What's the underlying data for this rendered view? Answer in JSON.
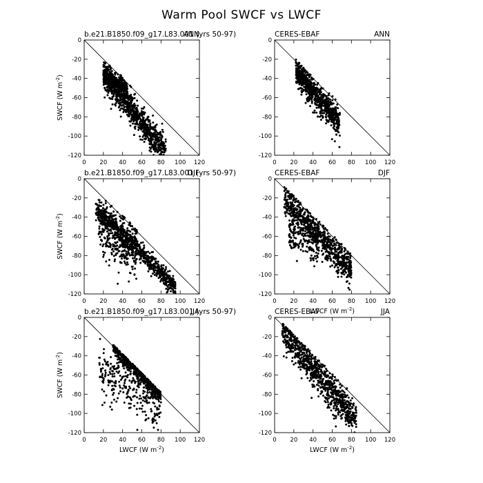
{
  "figure": {
    "title": "Warm Pool SWCF vs LWCF"
  },
  "chart_data": [
    {
      "type": "scatter",
      "left_title": "b.e21.B1850.f09_g17.L83.001 (yrs 50-97)",
      "right_title": "ANN",
      "xlabel": "",
      "ylabel": "SWCF (W m^-2)",
      "xlim": [
        0,
        120
      ],
      "ylim": [
        -120,
        0
      ],
      "xticks": [
        0,
        20,
        40,
        60,
        80,
        100,
        120
      ],
      "yticks": [
        0,
        -20,
        -40,
        -60,
        -80,
        -100,
        -120
      ],
      "reference_line": "1:1 (SWCF = -LWCF)",
      "clusters": [
        {
          "x_range": [
            20,
            85
          ],
          "slope": -1.25,
          "intercept": -10,
          "spread": 8,
          "n": 900
        },
        {
          "x_range": [
            20,
            45
          ],
          "slope": -0.55,
          "intercept": -25,
          "spread": 4,
          "n": 250
        }
      ]
    },
    {
      "type": "scatter",
      "left_title": "CERES-EBAF",
      "right_title": "ANN",
      "xlabel": "",
      "ylabel": "",
      "xlim": [
        0,
        120
      ],
      "ylim": [
        -120,
        0
      ],
      "xticks": [
        0,
        20,
        40,
        60,
        80,
        100,
        120
      ],
      "yticks": [
        0,
        -20,
        -40,
        -60,
        -80,
        -100,
        -120
      ],
      "reference_line": "1:1 (SWCF = -LWCF)",
      "clusters": [
        {
          "x_range": [
            22,
            68
          ],
          "slope": -1.15,
          "intercept": -8,
          "spread": 8,
          "n": 700
        },
        {
          "x_range": [
            22,
            35
          ],
          "slope": -0.6,
          "intercept": -22,
          "spread": 3,
          "n": 120
        }
      ]
    },
    {
      "type": "scatter",
      "left_title": "b.e21.B1850.f09_g17.L83.001 (yrs 50-97)",
      "right_title": "DJF",
      "xlabel": "",
      "ylabel": "SWCF (W m^-2)",
      "xlim": [
        0,
        120
      ],
      "ylim": [
        -120,
        0
      ],
      "xticks": [
        0,
        20,
        40,
        60,
        80,
        100,
        120
      ],
      "yticks": [
        0,
        -20,
        -40,
        -60,
        -80,
        -100,
        -120
      ],
      "reference_line": "1:1 (SWCF = -LWCF)",
      "clusters": [
        {
          "x_range": [
            12,
            95
          ],
          "slope": -1.0,
          "intercept": -18,
          "spread": 5,
          "n": 800
        },
        {
          "x_range": [
            15,
            55
          ],
          "slope": -0.55,
          "intercept": -42,
          "spread": 14,
          "n": 350
        }
      ]
    },
    {
      "type": "scatter",
      "left_title": "CERES-EBAF",
      "right_title": "DJF",
      "xlabel": "LWCF (W m^-2)",
      "ylabel": "",
      "xlim": [
        0,
        120
      ],
      "ylim": [
        -120,
        0
      ],
      "xticks": [
        0,
        20,
        40,
        60,
        80,
        100,
        120
      ],
      "yticks": [
        0,
        -20,
        -40,
        -60,
        -80,
        -100,
        -120
      ],
      "reference_line": "1:1 (SWCF = -LWCF)",
      "clusters": [
        {
          "x_range": [
            10,
            80
          ],
          "slope": -1.05,
          "intercept": -12,
          "spread": 8,
          "n": 850
        },
        {
          "x_range": [
            15,
            45
          ],
          "slope": -0.5,
          "intercept": -50,
          "spread": 10,
          "n": 150
        }
      ]
    },
    {
      "type": "scatter",
      "left_title": "b.e21.B1850.f09_g17.L83.001 (yrs 50-97)",
      "right_title": "JJA",
      "xlabel": "LWCF (W m^-2)",
      "ylabel": "SWCF (W m^-2)",
      "xlim": [
        0,
        120
      ],
      "ylim": [
        -120,
        0
      ],
      "xticks": [
        0,
        20,
        40,
        60,
        80,
        100,
        120
      ],
      "yticks": [
        0,
        -20,
        -40,
        -60,
        -80,
        -100,
        -120
      ],
      "reference_line": "1:1 (SWCF = -LWCF)",
      "clusters": [
        {
          "x_range": [
            30,
            80
          ],
          "slope": -1.0,
          "intercept": 0,
          "spread": 5,
          "n": 600
        },
        {
          "x_range": [
            15,
            80
          ],
          "slope": -0.6,
          "intercept": -45,
          "spread": 14,
          "n": 300
        }
      ]
    },
    {
      "type": "scatter",
      "left_title": "CERES-EBAF",
      "right_title": "JJA",
      "xlabel": "LWCF (W m^-2)",
      "ylabel": "",
      "xlim": [
        0,
        120
      ],
      "ylim": [
        -120,
        0
      ],
      "xticks": [
        0,
        20,
        40,
        60,
        80,
        100,
        120
      ],
      "yticks": [
        0,
        -20,
        -40,
        -60,
        -80,
        -100,
        -120
      ],
      "reference_line": "1:1 (SWCF = -LWCF)",
      "clusters": [
        {
          "x_range": [
            8,
            85
          ],
          "slope": -1.2,
          "intercept": -5,
          "spread": 9,
          "n": 900
        }
      ]
    }
  ]
}
